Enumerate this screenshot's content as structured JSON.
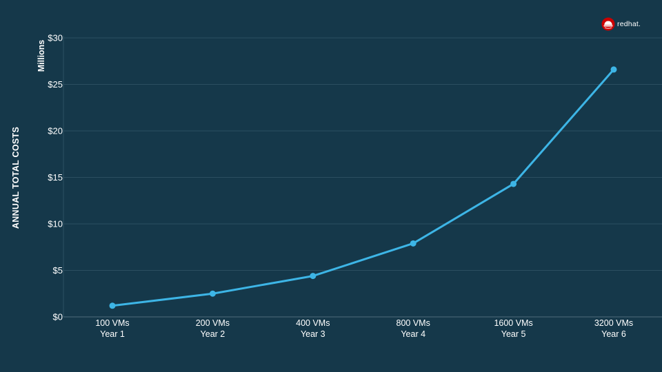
{
  "chart_data": {
    "type": "line",
    "title": "",
    "ylabel": "ANNUAL TOTAL COSTS",
    "yunit": "Millions",
    "xlabel": "",
    "ylim": [
      0,
      30
    ],
    "yticks": [
      "$0",
      "$5",
      "$10",
      "$15",
      "$20",
      "$25",
      "$30"
    ],
    "yticks_values": [
      0,
      5,
      10,
      15,
      20,
      25,
      30
    ],
    "categories": [
      [
        "100 VMs",
        "Year 1"
      ],
      [
        "200 VMs",
        "Year 2"
      ],
      [
        "400 VMs",
        "Year 3"
      ],
      [
        "800 VMs",
        "Year 4"
      ],
      [
        "1600 VMs",
        "Year 5"
      ],
      [
        "3200 VMs",
        "Year 6"
      ]
    ],
    "series": [
      {
        "values": [
          1.2,
          2.5,
          4.4,
          7.9,
          14.3,
          26.6
        ],
        "color": "#3db5e6"
      }
    ],
    "grid": true,
    "legend": "none"
  },
  "brand": {
    "logo_text": "redhat.",
    "logo_icon": "redhat-hat-icon"
  },
  "colors": {
    "background": "#15384a",
    "line": "#3db5e6",
    "grid": "#2b4f61",
    "text": "#ffffff"
  }
}
